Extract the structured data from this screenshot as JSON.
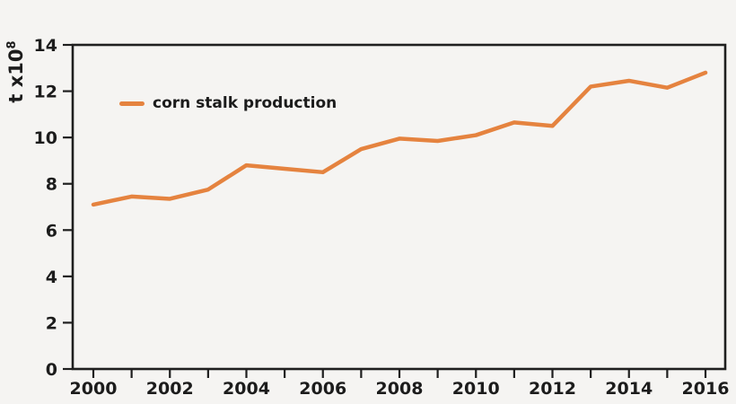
{
  "figure": {
    "background_color": "#f5f4f2",
    "axis_color": "#1f1f1f",
    "text_color": "#1c1c1c"
  },
  "legend": {
    "label": "corn stalk production",
    "swatch_color": "#e5833f"
  },
  "y_axis": {
    "label_main": "t x10",
    "label_exponent": "8",
    "tick_labels": [
      "0",
      "2",
      "4",
      "6",
      "8",
      "10",
      "12",
      "14"
    ]
  },
  "x_axis": {
    "labeled_years": [
      "2000",
      "2002",
      "2004",
      "2006",
      "2008",
      "2010",
      "2012",
      "2014",
      "2016"
    ]
  },
  "chart_data": {
    "type": "line",
    "title": "",
    "xlabel": "",
    "ylabel": "t x10^8",
    "x": [
      2000,
      2001,
      2002,
      2003,
      2004,
      2005,
      2006,
      2007,
      2008,
      2009,
      2010,
      2011,
      2012,
      2013,
      2014,
      2015,
      2016
    ],
    "series": [
      {
        "name": "corn stalk production",
        "color": "#e5833f",
        "values": [
          7.1,
          7.45,
          7.35,
          7.75,
          8.8,
          8.65,
          8.5,
          9.5,
          9.95,
          9.85,
          10.1,
          10.65,
          10.5,
          12.2,
          12.45,
          12.15,
          12.8
        ]
      }
    ],
    "ylim": [
      0,
      14
    ],
    "xlim": [
      2000,
      2016
    ],
    "y_tick_step": 2,
    "x_tick_step_minor": 1,
    "x_label_step": 2,
    "grid": false,
    "legend_position": "upper-left-inside"
  }
}
